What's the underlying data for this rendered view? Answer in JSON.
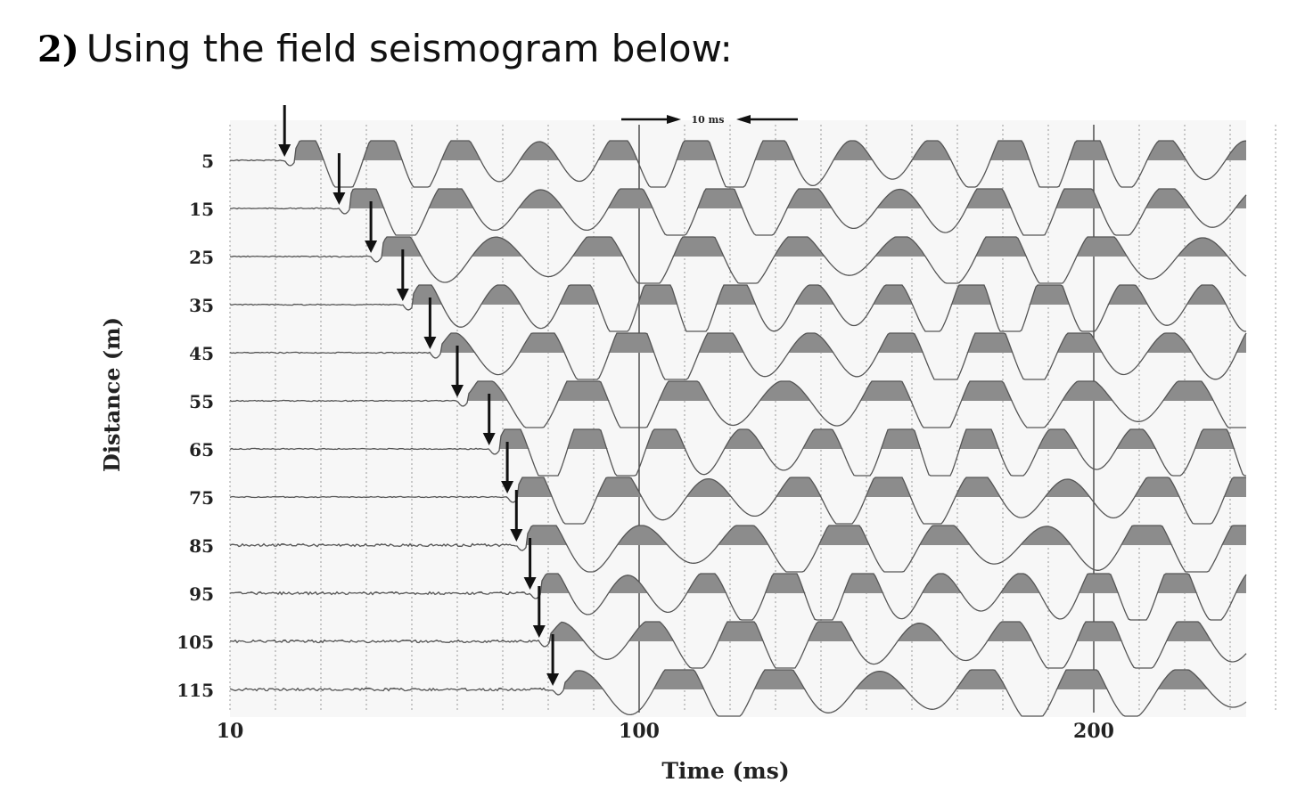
{
  "question": {
    "number": "2)",
    "text": "Using the field seismogram below:"
  },
  "scale_bar_label": "10 ms",
  "chart_data": {
    "type": "line",
    "title": "",
    "xlabel": "Time (ms)",
    "ylabel": "Distance (m)",
    "xlim": [
      10,
      245
    ],
    "x_tick_labels": [
      "10",
      "100",
      "200"
    ],
    "x_ticks": [
      10,
      100,
      200
    ],
    "distances": [
      5,
      15,
      25,
      35,
      45,
      55,
      65,
      75,
      85,
      95,
      105,
      115
    ],
    "distance_labels": [
      "5",
      "15",
      "25",
      "35",
      "45",
      "55",
      "65",
      "75",
      "85",
      "95",
      "105",
      "115"
    ],
    "first_arrivals_ms": [
      22,
      34,
      41,
      48,
      54,
      60,
      67,
      71,
      73,
      76,
      78,
      81
    ],
    "gridlines": "dashed vertical, every 10 ms",
    "colors": {
      "trace": "#555555",
      "fill": "#8c8c8c",
      "arrow": "#111111"
    }
  }
}
